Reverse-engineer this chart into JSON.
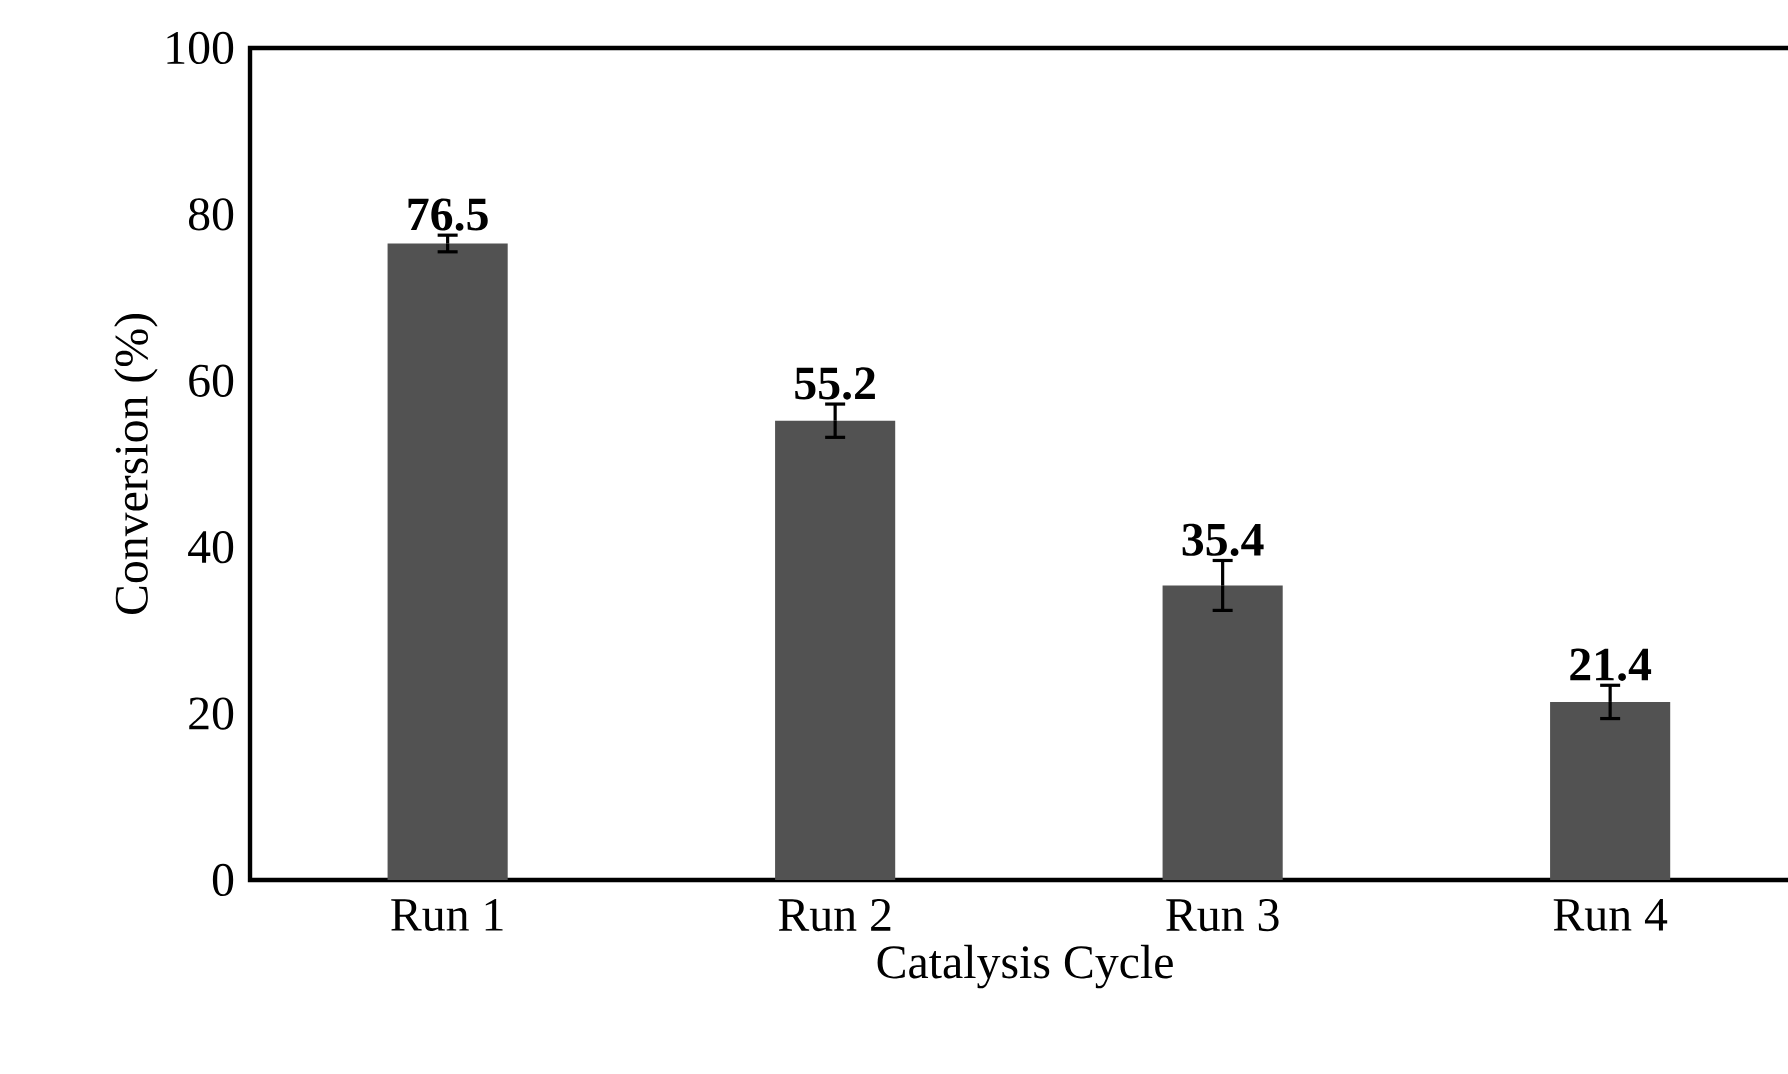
{
  "chart_data": {
    "type": "bar",
    "xlabel": "Catalysis Cycle",
    "ylabel": "Conversion (%)",
    "categories": [
      "Run 1",
      "Run 2",
      "Run 3",
      "Run 4"
    ],
    "values": [
      76.5,
      55.2,
      35.4,
      21.4
    ],
    "errors": [
      1,
      2,
      3,
      2
    ],
    "value_labels": [
      "76.5",
      "55.2",
      "35.4",
      "21.4"
    ],
    "color": "#525252",
    "ylim": [
      0,
      100
    ],
    "yticks": [
      0,
      20,
      40,
      60,
      80,
      100
    ]
  }
}
